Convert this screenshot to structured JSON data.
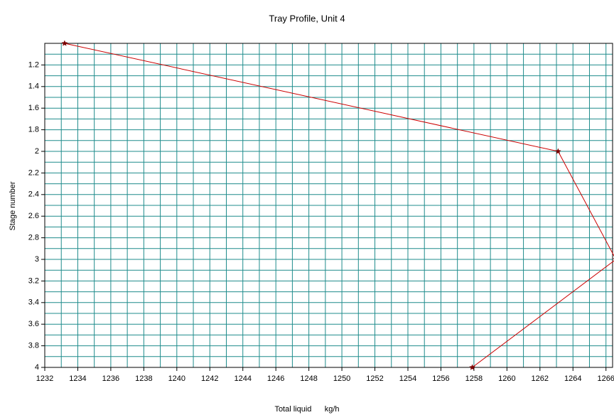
{
  "chart_data": {
    "type": "line",
    "title": "Tray Profile, Unit 4",
    "xlabel": "Total liquid      kg/h",
    "ylabel": "Stage number",
    "series": [
      {
        "name": "Total liquid",
        "color": "#cc0000",
        "marker_color": "#7a0000",
        "x": [
          1233.2,
          1263.1,
          1266.6,
          1257.9
        ],
        "values": [
          1,
          2,
          3,
          4
        ]
      }
    ],
    "xlim": [
      1232,
      1266.4
    ],
    "ylim": [
      1,
      4
    ],
    "y_inverted": true,
    "xticks": [
      1232,
      1234,
      1236,
      1238,
      1240,
      1242,
      1244,
      1246,
      1248,
      1250,
      1252,
      1254,
      1256,
      1258,
      1260,
      1262,
      1264,
      1266
    ],
    "yticks": [
      1.2,
      1.4,
      1.6,
      1.8,
      2,
      2.2,
      2.4,
      2.6,
      2.8,
      3,
      3.2,
      3.4,
      3.6,
      3.8,
      4
    ],
    "grid": true,
    "grid_color": "#1f8c8c",
    "grid_spacing": [
      1,
      0.1
    ]
  }
}
